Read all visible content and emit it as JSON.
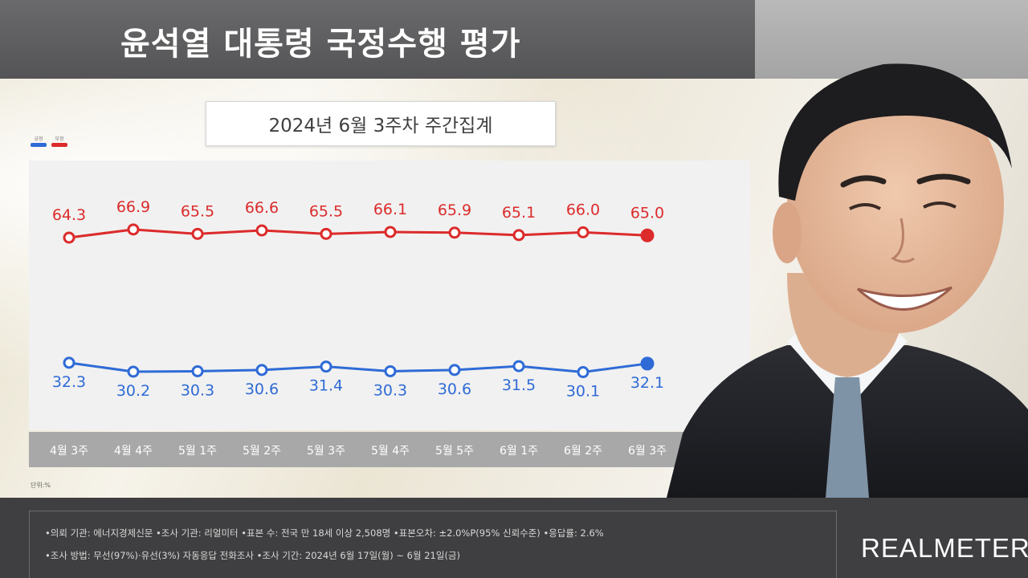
{
  "header": {
    "title": "윤석열 대통령 국정수행 평가",
    "subtitle": "2024년 6월 3주차 주간집계"
  },
  "legend": {
    "positive_label": "긍정",
    "negative_label": "부정",
    "positive_color": "#2f6bd6",
    "negative_color": "#dc2b2b"
  },
  "chart_data": {
    "type": "line",
    "categories": [
      "4월 3주",
      "4월 4주",
      "5월 1주",
      "5월 2주",
      "5월 3주",
      "5월 4주",
      "5월 5주",
      "6월 1주",
      "6월 2주",
      "6월 3주"
    ],
    "series": [
      {
        "name": "부정",
        "values": [
          64.3,
          66.9,
          65.5,
          66.6,
          65.5,
          66.1,
          65.9,
          65.1,
          66.0,
          65.0
        ],
        "color": "#dc2b2b"
      },
      {
        "name": "긍정",
        "values": [
          32.3,
          30.2,
          30.3,
          30.6,
          31.4,
          30.3,
          30.6,
          31.5,
          30.1,
          32.1
        ],
        "color": "#2f6bd6"
      }
    ],
    "value_labels": {
      "부정": [
        "64.3",
        "66.9",
        "65.5",
        "66.6",
        "65.5",
        "66.1",
        "65.9",
        "65.1",
        "66.0",
        "65.0"
      ],
      "긍정": [
        "32.3",
        "30.2",
        "30.3",
        "30.6",
        "31.4",
        "30.3",
        "30.6",
        "31.5",
        "30.1",
        "32.1"
      ]
    },
    "grid": false,
    "unit_note": "단위:%"
  },
  "footer": {
    "line1": "•의뢰 기관: 에너지경제신문 •조사 기관: 리얼미터 •표본 수: 전국 만 18세 이상 2,508명 •표본오차: ±2.0%P(95% 신뢰수준) •응답률: 2.6%",
    "line2": "•조사 방법: 무선(97%)·유선(3%) 자동응답 전화조사 •조사 기간: 2024년 6월 17일(월) ~ 6월 21일(금)",
    "brand": "REALMETER"
  }
}
